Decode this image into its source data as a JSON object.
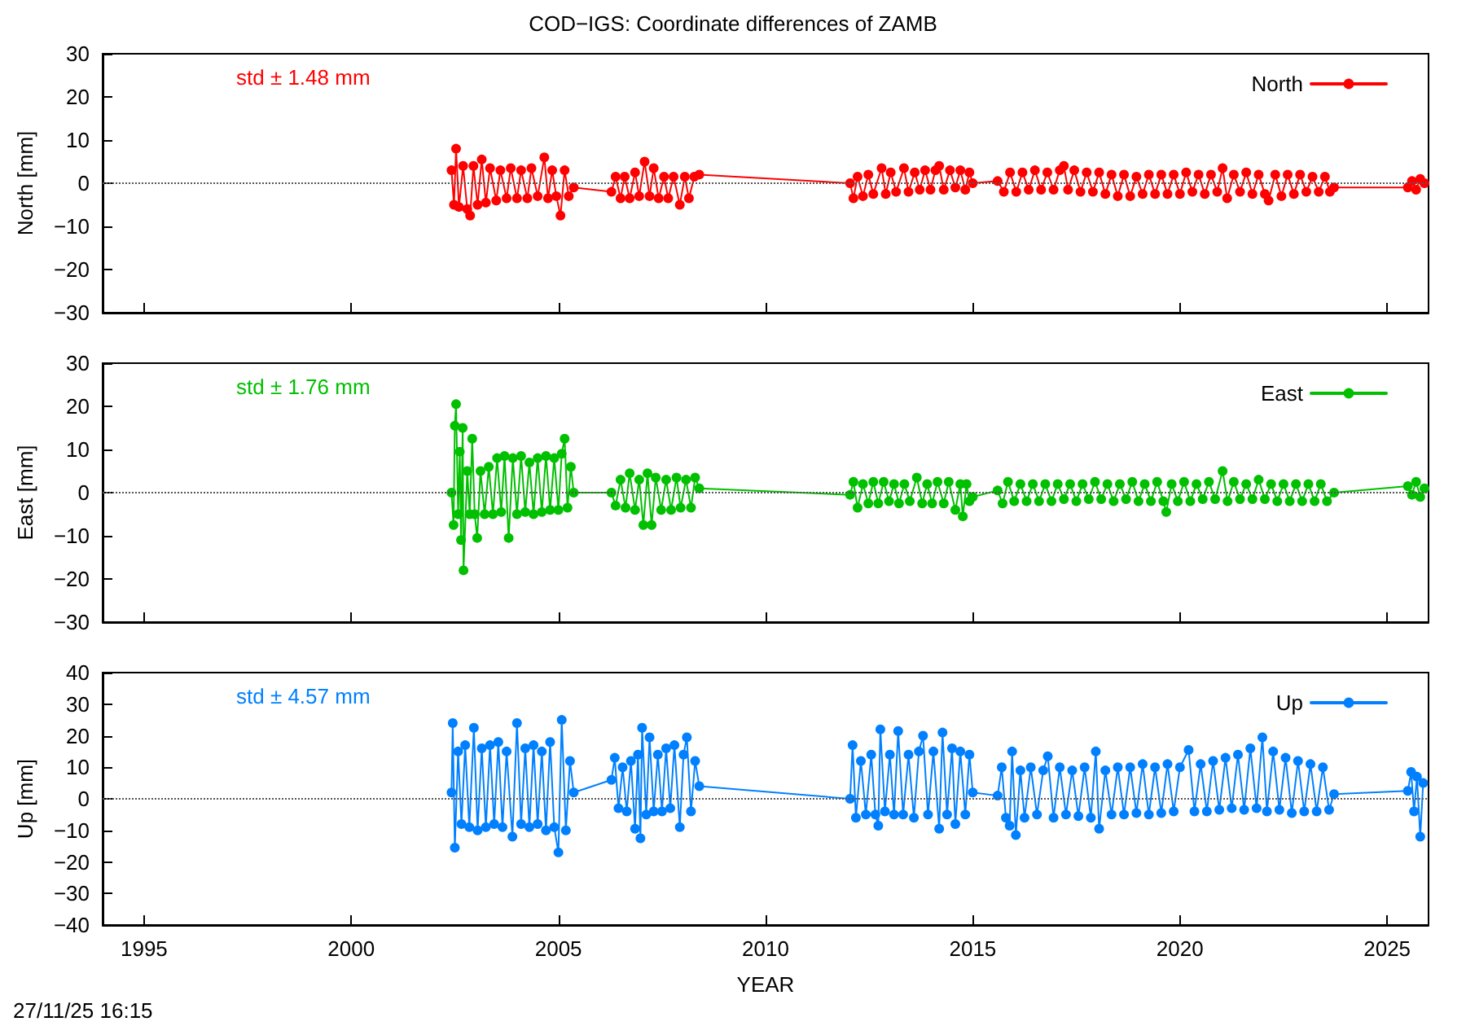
{
  "chart_data": [
    {
      "type": "line",
      "title": "COD−IGS: Coordinate differences of ZAMB",
      "ylabel": "North [mm]",
      "annotations": [
        "std ± 1.48 mm"
      ],
      "xlim": [
        1994,
        2026
      ],
      "xticks": [
        1995,
        2000,
        2005,
        2010,
        2015,
        2020,
        2025
      ],
      "ylim": [
        -30,
        30
      ],
      "yticks": [
        -30,
        -20,
        -10,
        0,
        10,
        20,
        30
      ],
      "tick_labels": "y",
      "legend": "top right",
      "marker": "circle",
      "line_style": "solid",
      "ref_lines": [
        {
          "axis": "y",
          "value": 0,
          "color": "#555555",
          "line_style": "dotted"
        }
      ],
      "series": [
        {
          "name": "North",
          "color": "#ff0000",
          "x": [
            2002.42,
            2002.48,
            2002.53,
            2002.6,
            2002.7,
            2002.8,
            2002.87,
            2002.95,
            2003.05,
            2003.15,
            2003.25,
            2003.35,
            2003.5,
            2003.6,
            2003.75,
            2003.85,
            2004.0,
            2004.1,
            2004.25,
            2004.35,
            2004.5,
            2004.66,
            2004.75,
            2004.85,
            2004.95,
            2005.05,
            2005.15,
            2005.25,
            2005.37,
            2006.28,
            2006.38,
            2006.5,
            2006.6,
            2006.72,
            2006.85,
            2006.95,
            2007.08,
            2007.2,
            2007.3,
            2007.42,
            2007.55,
            2007.65,
            2007.78,
            2007.93,
            2008.05,
            2008.15,
            2008.28,
            2008.4,
            2012.04,
            2012.12,
            2012.22,
            2012.35,
            2012.48,
            2012.6,
            2012.8,
            2012.9,
            2013.02,
            2013.15,
            2013.34,
            2013.45,
            2013.6,
            2013.72,
            2013.85,
            2013.98,
            2014.1,
            2014.19,
            2014.3,
            2014.45,
            2014.58,
            2014.7,
            2014.82,
            2014.92,
            2015.0,
            2015.6,
            2015.75,
            2015.9,
            2016.05,
            2016.2,
            2016.35,
            2016.5,
            2016.65,
            2016.8,
            2016.95,
            2017.1,
            2017.2,
            2017.3,
            2017.45,
            2017.6,
            2017.75,
            2017.9,
            2018.05,
            2018.2,
            2018.35,
            2018.5,
            2018.65,
            2018.8,
            2018.95,
            2019.1,
            2019.25,
            2019.4,
            2019.55,
            2019.7,
            2019.85,
            2020.0,
            2020.15,
            2020.3,
            2020.45,
            2020.6,
            2020.75,
            2020.9,
            2021.03,
            2021.14,
            2021.3,
            2021.45,
            2021.6,
            2021.75,
            2021.9,
            2022.05,
            2022.14,
            2022.3,
            2022.45,
            2022.6,
            2022.75,
            2022.9,
            2023.05,
            2023.2,
            2023.35,
            2023.5,
            2023.62,
            2023.72,
            2025.5,
            2025.6,
            2025.7,
            2025.8,
            2025.9
          ],
          "values": [
            3,
            -5,
            8,
            -5.5,
            4,
            -6,
            -7.5,
            4,
            -5,
            5.5,
            -4.5,
            3.5,
            -4,
            3,
            -3.5,
            3.5,
            -3.5,
            3,
            -3.5,
            3.5,
            -3,
            6,
            -3.5,
            3,
            -3,
            -7.5,
            3,
            -3,
            -1,
            -2,
            1.5,
            -3.5,
            1.5,
            -3.5,
            2.5,
            -3,
            5,
            -3,
            3.5,
            -3.5,
            1.5,
            -3.5,
            1.5,
            -5,
            1.5,
            -3.5,
            1.5,
            2,
            0,
            -3.5,
            1.5,
            -3,
            2,
            -2.5,
            3.5,
            -2.5,
            2.5,
            -2,
            3.5,
            -2,
            2.5,
            -1.5,
            3,
            -1.5,
            3,
            4,
            -1.5,
            3,
            -1,
            3,
            -1.5,
            2.5,
            0,
            0.5,
            -2,
            2.5,
            -2,
            2.5,
            -1.5,
            3,
            -1.5,
            2.5,
            -1.5,
            3,
            4,
            -1.5,
            3,
            -2,
            2.5,
            -2,
            2.5,
            -2.5,
            2,
            -3,
            2,
            -3,
            1.5,
            -2.5,
            2,
            -2.5,
            2,
            -2.5,
            2,
            -2.5,
            2.5,
            -2,
            2,
            -2.5,
            2,
            -2,
            3.5,
            -3.5,
            2,
            -2,
            2.5,
            -2.5,
            2,
            -2.5,
            -4,
            2,
            -3,
            2,
            -2.5,
            2,
            -2,
            1.5,
            -2,
            1.5,
            -2,
            -1,
            -1,
            0.5,
            -1.5,
            1,
            0
          ]
        }
      ]
    },
    {
      "type": "line",
      "ylabel": "East [mm]",
      "annotations": [
        "std ± 1.76 mm"
      ],
      "xlim": [
        1994,
        2026
      ],
      "xticks": [
        1995,
        2000,
        2005,
        2010,
        2015,
        2020,
        2025
      ],
      "ylim": [
        -30,
        30
      ],
      "yticks": [
        -30,
        -20,
        -10,
        0,
        10,
        20,
        30
      ],
      "tick_labels": "y",
      "legend": "top right",
      "marker": "circle",
      "line_style": "solid",
      "ref_lines": [
        {
          "axis": "y",
          "value": 0,
          "color": "#555555",
          "line_style": "dotted"
        }
      ],
      "series": [
        {
          "name": "East",
          "color": "#00c000",
          "x": [
            2002.42,
            2002.47,
            2002.5,
            2002.53,
            2002.58,
            2002.62,
            2002.65,
            2002.69,
            2002.71,
            2002.8,
            2002.86,
            2002.92,
            2002.98,
            2003.04,
            2003.12,
            2003.22,
            2003.32,
            2003.42,
            2003.52,
            2003.62,
            2003.7,
            2003.8,
            2003.9,
            2004.0,
            2004.1,
            2004.2,
            2004.3,
            2004.4,
            2004.5,
            2004.6,
            2004.7,
            2004.8,
            2004.9,
            2005.0,
            2005.08,
            2005.15,
            2005.22,
            2005.3,
            2005.37,
            2006.28,
            2006.38,
            2006.5,
            2006.62,
            2006.72,
            2006.85,
            2006.95,
            2007.05,
            2007.15,
            2007.25,
            2007.35,
            2007.48,
            2007.6,
            2007.72,
            2007.85,
            2007.95,
            2008.08,
            2008.2,
            2008.3,
            2008.4,
            2012.04,
            2012.12,
            2012.22,
            2012.35,
            2012.48,
            2012.6,
            2012.72,
            2012.85,
            2012.98,
            2013.1,
            2013.22,
            2013.35,
            2013.48,
            2013.65,
            2013.78,
            2013.9,
            2014.02,
            2014.15,
            2014.3,
            2014.42,
            2014.58,
            2014.7,
            2014.76,
            2014.85,
            2014.92,
            2015.0,
            2015.6,
            2015.72,
            2015.85,
            2016.0,
            2016.15,
            2016.3,
            2016.45,
            2016.6,
            2016.75,
            2016.9,
            2017.05,
            2017.2,
            2017.35,
            2017.5,
            2017.65,
            2017.8,
            2017.95,
            2018.1,
            2018.25,
            2018.4,
            2018.55,
            2018.7,
            2018.85,
            2019.0,
            2019.15,
            2019.3,
            2019.45,
            2019.6,
            2019.67,
            2019.8,
            2019.95,
            2020.1,
            2020.25,
            2020.4,
            2020.55,
            2020.7,
            2020.85,
            2021.03,
            2021.15,
            2021.3,
            2021.45,
            2021.6,
            2021.75,
            2021.9,
            2022.05,
            2022.2,
            2022.35,
            2022.5,
            2022.65,
            2022.8,
            2022.95,
            2023.1,
            2023.25,
            2023.4,
            2023.55,
            2023.72,
            2025.5,
            2025.6,
            2025.7,
            2025.8,
            2025.9
          ],
          "values": [
            0,
            -7.5,
            15.5,
            20.5,
            -5,
            9.5,
            -11,
            15,
            -18,
            5,
            -5,
            12.5,
            -5,
            -10.5,
            5,
            -5,
            6,
            -5,
            8,
            -4.5,
            8.5,
            -10.5,
            8,
            -5,
            8.5,
            -4.5,
            7,
            -5,
            8,
            -4.5,
            8.5,
            -4,
            8,
            -4,
            9,
            12.5,
            -3.5,
            6,
            0,
            0,
            -3,
            3,
            -3.5,
            4.5,
            -4,
            3,
            -7.5,
            4.5,
            -7.5,
            3.5,
            -4,
            3,
            -4,
            3.5,
            -3.5,
            3,
            -3.5,
            3.5,
            1,
            -0.5,
            2.5,
            -3.5,
            2,
            -2.5,
            2.5,
            -2.5,
            2.5,
            -2,
            2,
            -2.5,
            2,
            -2,
            3.5,
            -2.5,
            2,
            -2.5,
            2.5,
            -2.5,
            2.5,
            -4,
            2,
            -5.5,
            2,
            -2,
            -1,
            0.5,
            -2.5,
            2.5,
            -2,
            2,
            -2,
            2,
            -2,
            2,
            -2,
            2,
            -1.5,
            2,
            -2,
            2,
            -1.5,
            2.5,
            -1.5,
            2,
            -2,
            2,
            -1.5,
            2.5,
            -2,
            2,
            -2,
            2.5,
            -2,
            -4.5,
            2,
            -2,
            2.5,
            -2,
            2,
            -1.5,
            2.5,
            -1.5,
            5,
            -2,
            2.5,
            -1.5,
            2,
            -1.5,
            3,
            -1.5,
            2,
            -2,
            2,
            -2,
            2,
            -2,
            2,
            -2,
            2,
            -2,
            0,
            1.5,
            -0.5,
            2.5,
            -1,
            1
          ]
        }
      ]
    },
    {
      "type": "line",
      "xlabel": "YEAR",
      "ylabel": "Up [mm]",
      "annotations": [
        "std ± 4.57 mm",
        "27/11/25 16:15"
      ],
      "xlim": [
        1994,
        2026
      ],
      "xticks": [
        1995,
        2000,
        2005,
        2010,
        2015,
        2020,
        2025
      ],
      "ylim": [
        -40,
        40
      ],
      "yticks": [
        -40,
        -30,
        -20,
        -10,
        0,
        10,
        20,
        30,
        40
      ],
      "legend": "top right",
      "marker": "circle",
      "line_style": "solid",
      "ref_lines": [
        {
          "axis": "y",
          "value": 0,
          "color": "#555555",
          "line_style": "dotted"
        }
      ],
      "series": [
        {
          "name": "Up",
          "color": "#0080ff",
          "x": [
            2002.42,
            2002.45,
            2002.5,
            2002.58,
            2002.66,
            2002.75,
            2002.85,
            2002.96,
            2003.05,
            2003.15,
            2003.25,
            2003.35,
            2003.45,
            2003.55,
            2003.65,
            2003.75,
            2003.89,
            2004.0,
            2004.1,
            2004.2,
            2004.3,
            2004.4,
            2004.5,
            2004.6,
            2004.7,
            2004.8,
            2004.9,
            2005.0,
            2005.08,
            2005.18,
            2005.28,
            2005.37,
            2006.28,
            2006.36,
            2006.45,
            2006.55,
            2006.65,
            2006.75,
            2006.85,
            2006.92,
            2006.98,
            2007.02,
            2007.12,
            2007.2,
            2007.3,
            2007.4,
            2007.5,
            2007.6,
            2007.7,
            2007.8,
            2007.93,
            2008.02,
            2008.1,
            2008.2,
            2008.3,
            2008.4,
            2012.04,
            2012.1,
            2012.18,
            2012.3,
            2012.42,
            2012.55,
            2012.65,
            2012.72,
            2012.77,
            2012.88,
            2013.0,
            2013.1,
            2013.2,
            2013.32,
            2013.45,
            2013.58,
            2013.7,
            2013.8,
            2013.92,
            2014.05,
            2014.19,
            2014.27,
            2014.38,
            2014.5,
            2014.58,
            2014.7,
            2014.82,
            2014.92,
            2015.0,
            2015.6,
            2015.7,
            2015.8,
            2015.89,
            2015.95,
            2016.04,
            2016.15,
            2016.25,
            2016.4,
            2016.55,
            2016.7,
            2016.81,
            2016.95,
            2017.1,
            2017.25,
            2017.4,
            2017.55,
            2017.7,
            2017.85,
            2017.97,
            2018.05,
            2018.2,
            2018.35,
            2018.5,
            2018.65,
            2018.8,
            2018.95,
            2019.1,
            2019.25,
            2019.4,
            2019.55,
            2019.7,
            2019.85,
            2020.0,
            2020.21,
            2020.35,
            2020.5,
            2020.65,
            2020.8,
            2020.95,
            2021.1,
            2021.25,
            2021.4,
            2021.55,
            2021.7,
            2021.85,
            2021.99,
            2022.1,
            2022.25,
            2022.4,
            2022.55,
            2022.7,
            2022.85,
            2023.0,
            2023.15,
            2023.3,
            2023.45,
            2023.6,
            2023.72,
            2025.5,
            2025.58,
            2025.65,
            2025.72,
            2025.8,
            2025.87
          ],
          "values": [
            2,
            24,
            -15.5,
            15,
            -8,
            17,
            -9,
            22.5,
            -10,
            16,
            -9,
            17,
            -8,
            18,
            -9,
            15,
            -12,
            24,
            -8,
            16,
            -9,
            17,
            -8,
            15,
            -10,
            18,
            -9,
            -17,
            25,
            -10,
            12,
            2,
            6,
            13,
            -3,
            10,
            -4,
            12,
            -9.5,
            14,
            -12.5,
            22.5,
            -5,
            19.5,
            -4,
            14,
            -4,
            16,
            -3,
            17,
            -9,
            14,
            19.5,
            -4,
            12,
            4,
            0,
            17,
            -6,
            12,
            -5,
            14,
            -5,
            -8.5,
            22,
            -4,
            14,
            -5,
            21.5,
            -5,
            14,
            -6,
            15,
            20,
            -5,
            15,
            -9.5,
            21,
            -5,
            16,
            -8,
            15,
            -5,
            14,
            2,
            1,
            10,
            -6,
            -8.5,
            15,
            -11.5,
            9,
            -6,
            10,
            -5,
            9,
            13.5,
            -6,
            10,
            -5,
            9,
            -5.5,
            10,
            -6,
            15,
            -9.5,
            9,
            -5,
            10,
            -5,
            10,
            -4.5,
            11,
            -5,
            10,
            -4.5,
            11,
            -4,
            10,
            15.5,
            -4,
            11,
            -4,
            12,
            -3.5,
            13,
            -3,
            14,
            -3.5,
            16,
            -3,
            19.5,
            -4,
            15,
            -3.5,
            13,
            -4.5,
            12,
            -4,
            11,
            -4,
            10,
            -3.5,
            1.5,
            2.5,
            8.5,
            -4,
            7,
            -12,
            5
          ]
        }
      ]
    }
  ]
}
